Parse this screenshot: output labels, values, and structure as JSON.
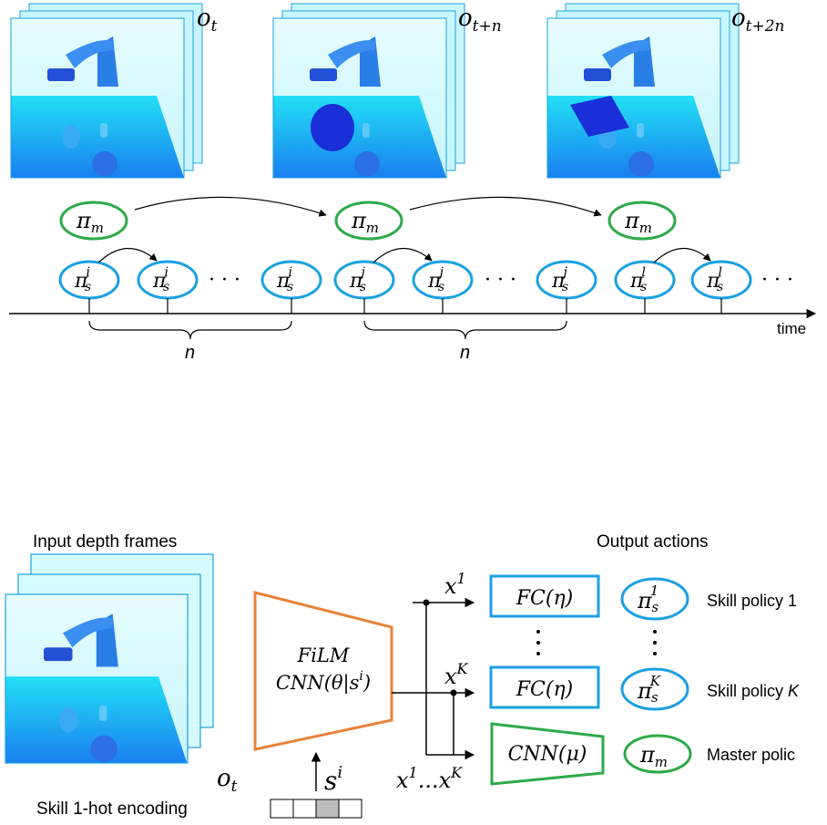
{
  "top": {
    "frames": [
      {
        "label_base": "o",
        "label_sub": "t"
      },
      {
        "label_base": "o",
        "label_sub": "t+n"
      },
      {
        "label_base": "o",
        "label_sub": "t+2n"
      }
    ],
    "master_nodes": [
      {
        "base": "π",
        "sub": "m"
      },
      {
        "base": "π",
        "sub": "m"
      },
      {
        "base": "π",
        "sub": "m"
      }
    ],
    "skill_nodes": [
      {
        "base": "π",
        "sub": "s",
        "sup": "i"
      },
      {
        "base": "π",
        "sub": "s",
        "sup": "i"
      },
      {
        "base": "π",
        "sub": "s",
        "sup": "i"
      },
      {
        "base": "π",
        "sub": "s",
        "sup": "j"
      },
      {
        "base": "π",
        "sub": "s",
        "sup": "j"
      },
      {
        "base": "π",
        "sub": "s",
        "sup": "j"
      },
      {
        "base": "π",
        "sub": "s",
        "sup": "l"
      },
      {
        "base": "π",
        "sub": "s",
        "sup": "l"
      }
    ],
    "ellipsis": "· · ·",
    "time_label": "time",
    "brace_labels": [
      "n",
      "n"
    ]
  },
  "bottom": {
    "input_title": "Input depth frames",
    "input_label_base": "o",
    "input_label_sub": "t",
    "film_line1": "FiLM",
    "film_line2": "CNN(θ|s",
    "film_line2_sup": "i",
    "film_line2_end": ")",
    "skill_input_base": "s",
    "skill_input_sup": "i",
    "encoding_label": "Skill 1-hot encoding",
    "x1_label_base": "x",
    "x1_label_sup": "1",
    "xK_label_base": "x",
    "xK_label_sup": "K",
    "xrange_label_a": "x",
    "xrange_sup_a": "1",
    "xrange_dots": "...",
    "xrange_label_b": "x",
    "xrange_sup_b": "K",
    "fc1": "FC(η)",
    "fcK": "FC(η)",
    "cnn_mu": "CNN(μ)",
    "output_title": "Output actions",
    "out1": {
      "base": "π",
      "sub": "s",
      "sup": "1",
      "label": "Skill policy 1"
    },
    "outK": {
      "base": "π",
      "sub": "s",
      "sup": "K",
      "label_prefix": "Skill policy ",
      "label_k": "K"
    },
    "outM": {
      "base": "π",
      "sub": "m",
      "label": "Master polic"
    }
  },
  "colors": {
    "skill_blue": "#1ba1e2",
    "master_green": "#2eaa4a",
    "film_orange": "#e8833a",
    "frame_top": "#dffbff",
    "frame_floor": "#18c6f0"
  }
}
